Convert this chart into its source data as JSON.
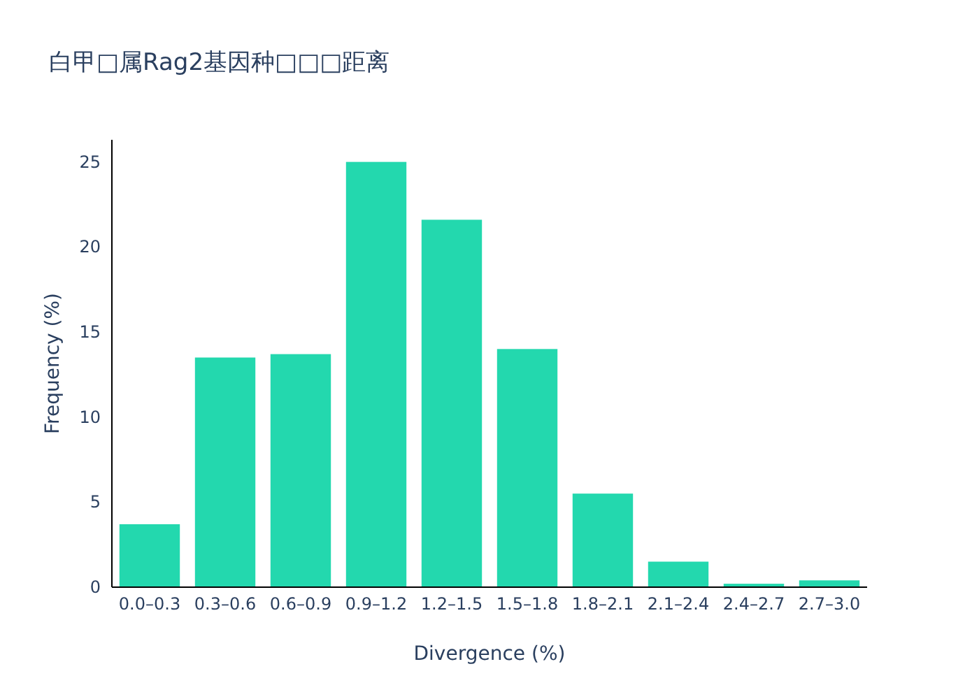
{
  "chart_data": {
    "type": "bar",
    "title": "白甲□属Rag2基因种□□□距离",
    "xlabel": "Divergence (%)",
    "ylabel": "Frequency (%)",
    "categories": [
      "0.0–0.3",
      "0.3–0.6",
      "0.6–0.9",
      "0.9–1.2",
      "1.2–1.5",
      "1.5–1.8",
      "1.8–2.1",
      "2.1–2.4",
      "2.4–2.7",
      "2.7–3.0"
    ],
    "values": [
      3.7,
      13.5,
      13.7,
      25.0,
      21.6,
      14.0,
      5.5,
      1.5,
      0.2,
      0.4
    ],
    "color": "#23d8ae",
    "ylim": [
      0,
      26.3
    ],
    "yticks": [
      0,
      5,
      10,
      15,
      20,
      25
    ],
    "grid": false
  }
}
